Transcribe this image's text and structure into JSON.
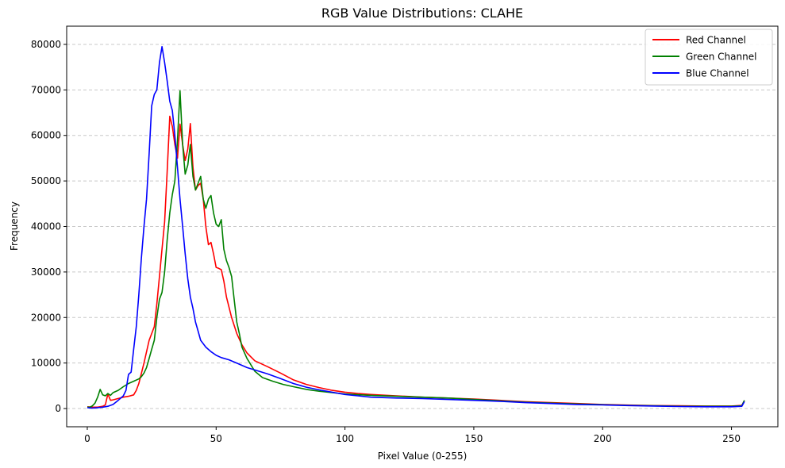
{
  "chart_data": {
    "type": "line",
    "title": "RGB Value Distributions: CLAHE",
    "xlabel": "Pixel Value (0-255)",
    "ylabel": "Frequency",
    "xlim": [
      -8,
      268
    ],
    "ylim": [
      -4000,
      84000
    ],
    "xticks": [
      0,
      50,
      100,
      150,
      200,
      250
    ],
    "yticks": [
      0,
      10000,
      20000,
      30000,
      40000,
      50000,
      60000,
      70000,
      80000
    ],
    "grid": "y-dashed",
    "legend_position": "top-right",
    "series": [
      {
        "name": "Red Channel",
        "color": "#ff0000",
        "points": [
          [
            0,
            400
          ],
          [
            2,
            300
          ],
          [
            4,
            300
          ],
          [
            6,
            500
          ],
          [
            7,
            800
          ],
          [
            8,
            3200
          ],
          [
            9,
            1800
          ],
          [
            10,
            1900
          ],
          [
            12,
            2200
          ],
          [
            14,
            2500
          ],
          [
            16,
            2700
          ],
          [
            18,
            3000
          ],
          [
            19,
            4000
          ],
          [
            20,
            5500
          ],
          [
            22,
            10000
          ],
          [
            24,
            15000
          ],
          [
            26,
            18000
          ],
          [
            27,
            23000
          ],
          [
            28,
            29000
          ],
          [
            29,
            35000
          ],
          [
            30,
            41000
          ],
          [
            31,
            52000
          ],
          [
            32,
            64200
          ],
          [
            33,
            62000
          ],
          [
            34,
            58000
          ],
          [
            35,
            55000
          ],
          [
            36,
            62500
          ],
          [
            37,
            58000
          ],
          [
            38,
            54500
          ],
          [
            39,
            57000
          ],
          [
            40,
            62600
          ],
          [
            41,
            53000
          ],
          [
            42,
            48000
          ],
          [
            43,
            49000
          ],
          [
            44,
            49500
          ],
          [
            45,
            46000
          ],
          [
            46,
            40000
          ],
          [
            47,
            36000
          ],
          [
            48,
            36500
          ],
          [
            49,
            34000
          ],
          [
            50,
            31000
          ],
          [
            51,
            30800
          ],
          [
            52,
            30500
          ],
          [
            53,
            28000
          ],
          [
            54,
            24500
          ],
          [
            56,
            20000
          ],
          [
            58,
            16500
          ],
          [
            60,
            14000
          ],
          [
            62,
            12200
          ],
          [
            65,
            10500
          ],
          [
            70,
            9200
          ],
          [
            75,
            7800
          ],
          [
            80,
            6300
          ],
          [
            85,
            5300
          ],
          [
            90,
            4600
          ],
          [
            95,
            4000
          ],
          [
            100,
            3600
          ],
          [
            105,
            3300
          ],
          [
            110,
            3100
          ],
          [
            120,
            2800
          ],
          [
            130,
            2500
          ],
          [
            140,
            2300
          ],
          [
            150,
            2100
          ],
          [
            160,
            1800
          ],
          [
            170,
            1500
          ],
          [
            180,
            1300
          ],
          [
            190,
            1100
          ],
          [
            200,
            900
          ],
          [
            210,
            750
          ],
          [
            220,
            650
          ],
          [
            230,
            600
          ],
          [
            240,
            550
          ],
          [
            250,
            550
          ],
          [
            254,
            700
          ],
          [
            255,
            1700
          ]
        ]
      },
      {
        "name": "Green Channel",
        "color": "#008000",
        "points": [
          [
            0,
            300
          ],
          [
            1,
            300
          ],
          [
            2,
            600
          ],
          [
            3,
            1200
          ],
          [
            4,
            2500
          ],
          [
            5,
            4200
          ],
          [
            6,
            3000
          ],
          [
            7,
            2800
          ],
          [
            8,
            3300
          ],
          [
            9,
            2900
          ],
          [
            10,
            3500
          ],
          [
            12,
            4000
          ],
          [
            14,
            4800
          ],
          [
            16,
            5500
          ],
          [
            18,
            6000
          ],
          [
            20,
            6500
          ],
          [
            21,
            7000
          ],
          [
            22,
            7800
          ],
          [
            23,
            9000
          ],
          [
            24,
            11000
          ],
          [
            25,
            13000
          ],
          [
            26,
            15000
          ],
          [
            27,
            20000
          ],
          [
            28,
            24000
          ],
          [
            29,
            25500
          ],
          [
            30,
            30000
          ],
          [
            31,
            37000
          ],
          [
            32,
            43000
          ],
          [
            33,
            47000
          ],
          [
            34,
            50000
          ],
          [
            35,
            59000
          ],
          [
            36,
            69800
          ],
          [
            37,
            58000
          ],
          [
            38,
            51500
          ],
          [
            39,
            53500
          ],
          [
            40,
            58000
          ],
          [
            41,
            51000
          ],
          [
            42,
            48000
          ],
          [
            43,
            49500
          ],
          [
            44,
            51000
          ],
          [
            45,
            46000
          ],
          [
            46,
            44000
          ],
          [
            47,
            46000
          ],
          [
            48,
            46800
          ],
          [
            49,
            43000
          ],
          [
            50,
            40500
          ],
          [
            51,
            40000
          ],
          [
            52,
            41500
          ],
          [
            53,
            35000
          ],
          [
            54,
            32500
          ],
          [
            55,
            31000
          ],
          [
            56,
            29000
          ],
          [
            57,
            24000
          ],
          [
            58,
            19000
          ],
          [
            59,
            16500
          ],
          [
            60,
            13500
          ],
          [
            62,
            11000
          ],
          [
            65,
            8200
          ],
          [
            68,
            6800
          ],
          [
            72,
            6000
          ],
          [
            76,
            5300
          ],
          [
            80,
            4800
          ],
          [
            85,
            4200
          ],
          [
            90,
            3800
          ],
          [
            95,
            3500
          ],
          [
            100,
            3200
          ],
          [
            110,
            2900
          ],
          [
            120,
            2700
          ],
          [
            130,
            2500
          ],
          [
            140,
            2300
          ],
          [
            150,
            2000
          ],
          [
            160,
            1700
          ],
          [
            170,
            1400
          ],
          [
            180,
            1200
          ],
          [
            190,
            1000
          ],
          [
            200,
            850
          ],
          [
            210,
            700
          ],
          [
            220,
            600
          ],
          [
            230,
            500
          ],
          [
            240,
            500
          ],
          [
            250,
            500
          ],
          [
            254,
            600
          ],
          [
            255,
            1800
          ]
        ]
      },
      {
        "name": "Blue Channel",
        "color": "#0000ff",
        "points": [
          [
            0,
            200
          ],
          [
            2,
            100
          ],
          [
            4,
            200
          ],
          [
            6,
            300
          ],
          [
            8,
            500
          ],
          [
            10,
            900
          ],
          [
            12,
            1800
          ],
          [
            13,
            2300
          ],
          [
            14,
            2800
          ],
          [
            15,
            4000
          ],
          [
            16,
            7500
          ],
          [
            17,
            8000
          ],
          [
            18,
            13000
          ],
          [
            19,
            18000
          ],
          [
            20,
            25000
          ],
          [
            21,
            33000
          ],
          [
            22,
            40000
          ],
          [
            23,
            46000
          ],
          [
            24,
            56000
          ],
          [
            25,
            66500
          ],
          [
            26,
            69000
          ],
          [
            27,
            70000
          ],
          [
            28,
            76000
          ],
          [
            29,
            79500
          ],
          [
            30,
            76000
          ],
          [
            31,
            72000
          ],
          [
            32,
            67500
          ],
          [
            33,
            65500
          ],
          [
            34,
            60000
          ],
          [
            35,
            53000
          ],
          [
            36,
            46000
          ],
          [
            37,
            40000
          ],
          [
            38,
            34000
          ],
          [
            39,
            28500
          ],
          [
            40,
            24500
          ],
          [
            41,
            22000
          ],
          [
            42,
            19000
          ],
          [
            43,
            17000
          ],
          [
            44,
            15000
          ],
          [
            46,
            13500
          ],
          [
            48,
            12500
          ],
          [
            50,
            11700
          ],
          [
            52,
            11200
          ],
          [
            55,
            10700
          ],
          [
            58,
            10000
          ],
          [
            62,
            9000
          ],
          [
            66,
            8300
          ],
          [
            70,
            7600
          ],
          [
            75,
            6600
          ],
          [
            80,
            5500
          ],
          [
            85,
            4700
          ],
          [
            90,
            4100
          ],
          [
            95,
            3600
          ],
          [
            100,
            3100
          ],
          [
            105,
            2800
          ],
          [
            110,
            2500
          ],
          [
            120,
            2300
          ],
          [
            130,
            2200
          ],
          [
            140,
            2000
          ],
          [
            150,
            1800
          ],
          [
            160,
            1600
          ],
          [
            170,
            1300
          ],
          [
            180,
            1100
          ],
          [
            190,
            900
          ],
          [
            200,
            800
          ],
          [
            210,
            650
          ],
          [
            220,
            550
          ],
          [
            230,
            450
          ],
          [
            240,
            400
          ],
          [
            250,
            400
          ],
          [
            254,
            500
          ],
          [
            255,
            1500
          ]
        ]
      }
    ]
  }
}
